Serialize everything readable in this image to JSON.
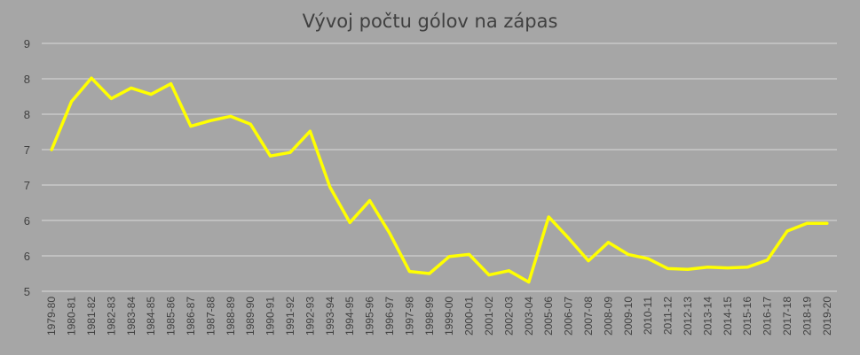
{
  "chart_data": {
    "type": "line",
    "title": "Vývoj počtu gólov na zápas",
    "xlabel": "",
    "ylabel": "",
    "ylim": [
      5,
      8.5
    ],
    "yticks": [
      5,
      5.5,
      6,
      6.5,
      7,
      7.5,
      8,
      8.5
    ],
    "ytick_labels": [
      "5",
      "6",
      "6",
      "7",
      "7",
      "8",
      "8",
      "9"
    ],
    "grid": true,
    "legend": "none",
    "categories": [
      "1979-80",
      "1980-81",
      "1981-82",
      "1982-83",
      "1983-84",
      "1984-85",
      "1985-86",
      "1986-87",
      "1987-88",
      "1988-89",
      "1989-90",
      "1990-91",
      "1991-92",
      "1992-93",
      "1993-94",
      "1994-95",
      "1995-96",
      "1996-97",
      "1997-98",
      "1998-99",
      "1999-00",
      "2000-01",
      "2001-02",
      "2002-03",
      "2003-04",
      "2005-06",
      "2006-07",
      "2007-08",
      "2008-09",
      "2009-10",
      "2010-11",
      "2011-12",
      "2012-13",
      "2013-14",
      "2014-15",
      "2015-16",
      "2016-17",
      "2017-18",
      "2018-19",
      "2019-20"
    ],
    "series": [
      {
        "color": "#ffff00",
        "values": [
          7.0,
          7.68,
          8.01,
          7.72,
          7.87,
          7.78,
          7.93,
          7.33,
          7.41,
          7.47,
          7.36,
          6.91,
          6.96,
          7.26,
          6.47,
          5.97,
          6.28,
          5.82,
          5.28,
          5.25,
          5.49,
          5.52,
          5.23,
          5.29,
          5.13,
          6.05,
          5.75,
          5.43,
          5.69,
          5.52,
          5.46,
          5.32,
          5.31,
          5.34,
          5.33,
          5.34,
          5.44,
          5.85,
          5.96,
          5.96
        ]
      }
    ]
  }
}
